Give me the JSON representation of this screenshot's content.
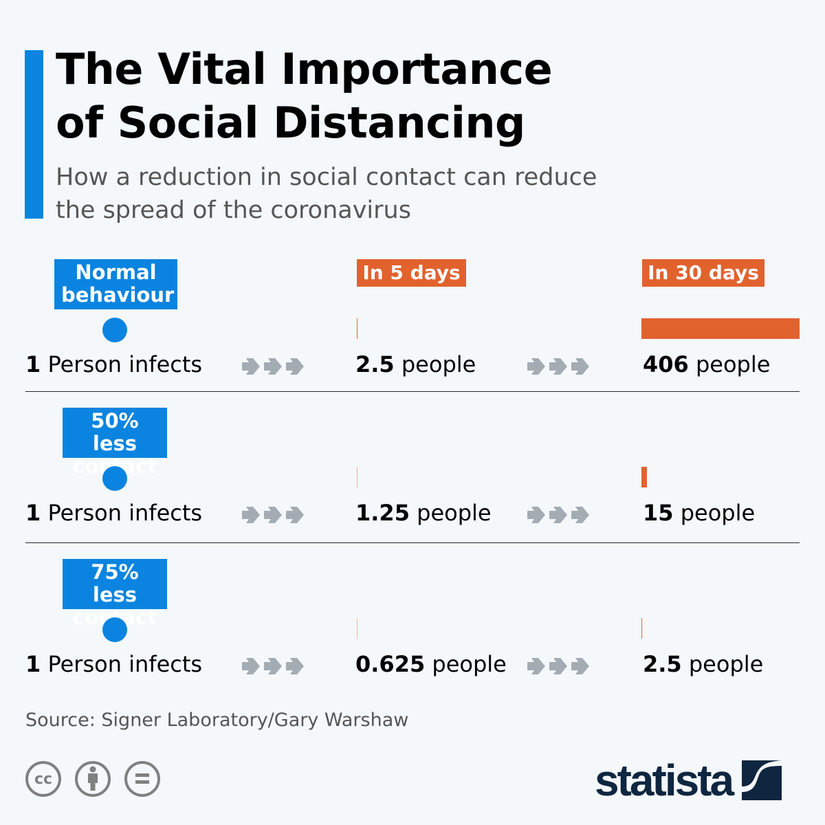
{
  "header": {
    "title_line1": "The Vital Importance",
    "title_line2": "of Social Distancing",
    "subtitle_line1": "How a reduction in social contact can reduce",
    "subtitle_line2": "the spread of the coronavirus"
  },
  "columns": {
    "col2": "In 5 days",
    "col3": "In 30 days"
  },
  "rows": [
    {
      "label_line1": "Normal",
      "label_line2": "behaviour",
      "start_num": "1",
      "start_text": " Person infects",
      "d5_num": "2.5",
      "d5_text": " people",
      "d30_num": "406",
      "d30_text": " people"
    },
    {
      "label_line1": "50% less",
      "label_line2": "contact",
      "start_num": "1",
      "start_text": " Person infects",
      "d5_num": "1.25",
      "d5_text": " people",
      "d30_num": "15",
      "d30_text": " people"
    },
    {
      "label_line1": "75% less",
      "label_line2": "contact",
      "start_num": "1",
      "start_text": " Person infects",
      "d5_num": "0.625",
      "d5_text": " people",
      "d30_num": "2.5",
      "d30_text": " people"
    }
  ],
  "chart_data": {
    "type": "bar",
    "title": "The Vital Importance of Social Distancing",
    "subtitle": "How a reduction in social contact can reduce the spread of the coronavirus",
    "categories": [
      "Normal behaviour",
      "50% less contact",
      "75% less contact"
    ],
    "series": [
      {
        "name": "In 5 days",
        "values": [
          2.5,
          1.25,
          0.625
        ]
      },
      {
        "name": "In 30 days",
        "values": [
          406,
          15,
          2.5
        ]
      }
    ],
    "start_value": 1,
    "orientation": "horizontal"
  },
  "colors": {
    "accent": "#0a84e0",
    "bar": "#e2622e",
    "arrow": "#a3abb3",
    "logo": "#0f2640"
  },
  "footer": {
    "source": "Source: Signer Laboratory/Gary Warshaw",
    "license_icons": [
      "cc-icon",
      "attribution-icon",
      "no-derivatives-icon"
    ],
    "cc_text": "cc",
    "brand": "statista"
  }
}
